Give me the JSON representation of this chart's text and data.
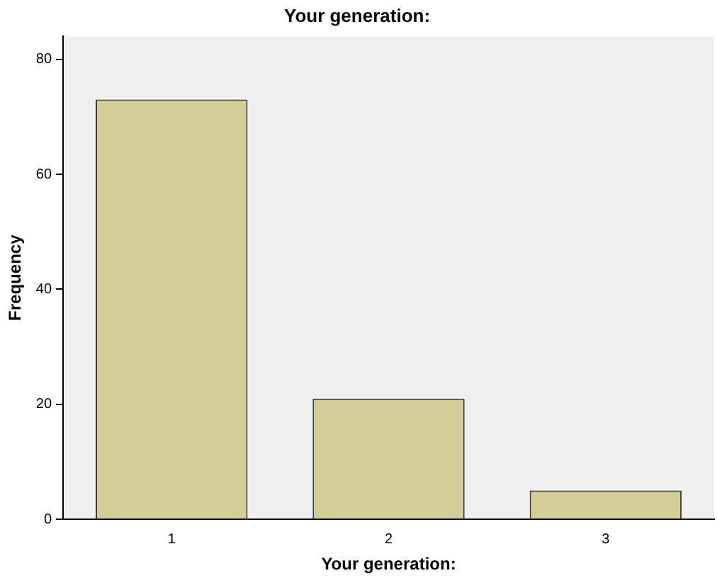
{
  "chart_data": {
    "type": "bar",
    "title": "Your generation:",
    "xlabel": "Your generation:",
    "ylabel": "Frequency",
    "categories": [
      "1",
      "2",
      "3"
    ],
    "values": [
      73,
      21,
      5
    ],
    "color": "#d3ce97",
    "ylim": [
      0,
      84
    ],
    "yticks": [
      0,
      20,
      40,
      60,
      80
    ],
    "grid": false,
    "legend": false
  }
}
